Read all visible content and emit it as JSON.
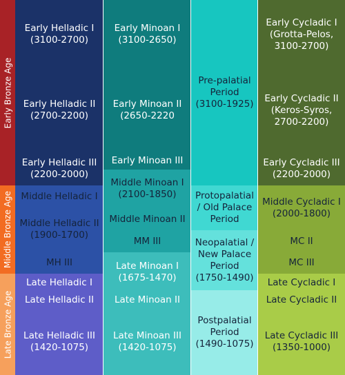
{
  "ages": [
    {
      "label": "Early Bronze Age",
      "color": "#a82226"
    },
    {
      "label": "Middle Bronze Age",
      "color": "#f26c22"
    },
    {
      "label": "Late Bronze Age",
      "color": "#f6a05c"
    }
  ],
  "columns": [
    {
      "name": "helladic",
      "cells": [
        {
          "label": "Early Helladic I\n(3100-2700)",
          "color": "#1b3268",
          "dark": false
        },
        {
          "label": "Early Helladic II\n(2700-2200)",
          "color": "#1b3268",
          "dark": false
        },
        {
          "label": "Early Helladic III\n(2200-2000)",
          "color": "#1b3268",
          "dark": false
        },
        {
          "label": "Middle Helladic I",
          "color": "#2c51a6",
          "dark": true
        },
        {
          "label": "Middle Helladic II\n(1900-1700)",
          "color": "#2c51a6",
          "dark": true
        },
        {
          "label": "MH III",
          "color": "#2c51a6",
          "dark": true
        },
        {
          "label": "Late Helladic I",
          "color": "#5e5dc8",
          "dark": false
        },
        {
          "label": "Late Helladic II",
          "color": "#5e5dc8",
          "dark": false
        },
        {
          "label": "Late Helladic III\n(1420-1075)",
          "color": "#5e5dc8",
          "dark": false
        }
      ]
    },
    {
      "name": "minoan",
      "cells": [
        {
          "label": "Early Minoan I\n(3100-2650)",
          "color": "#0f7c7d",
          "dark": false
        },
        {
          "label": "Early Minoan II\n(2650-2220",
          "color": "#0f7c7d",
          "dark": false
        },
        {
          "label": "Early Minoan III",
          "color": "#0f7c7d",
          "dark": false
        },
        {
          "label": "Middle Minoan I\n(2100-1850)",
          "color": "#1fa3a3",
          "dark": true
        },
        {
          "label": "Middle Minoan II",
          "color": "#1fa3a3",
          "dark": true
        },
        {
          "label": "MM III",
          "color": "#1fa3a3",
          "dark": true
        },
        {
          "label": "Late Minoan I\n(1675-1470)",
          "color": "#3dbdbb",
          "dark": false
        },
        {
          "label": "Late Minoan II",
          "color": "#3dbdbb",
          "dark": false
        },
        {
          "label": "Late Minoan III\n(1420-1075)",
          "color": "#3dbdbb",
          "dark": false
        }
      ]
    },
    {
      "name": "palatial",
      "cells": [
        {
          "label": "Pre-palatial\nPeriod\n(3100-1925)",
          "color": "#17c6c0",
          "dark": true
        },
        {
          "label": "Protopalatial\n/ Old Palace\nPeriod",
          "color": "#40d8d2",
          "dark": true
        },
        {
          "label": "Neopalatial /\nNew Palace\nPeriod\n(1750-1490)",
          "color": "#64e1dc",
          "dark": true
        },
        {
          "label": "Postpalatial\nPeriod\n(1490-1075)",
          "color": "#97ece8",
          "dark": true
        }
      ]
    },
    {
      "name": "cycladic",
      "cells": [
        {
          "label": "Early Cycladic I\n(Grotta-Pelos,\n3100-2700)",
          "color": "#4f6a2f",
          "dark": false
        },
        {
          "label": "Early Cycladic II\n(Keros-Syros,\n2700-2200)",
          "color": "#4f6a2f",
          "dark": false
        },
        {
          "label": "Early Cycladic III\n(2200-2000)",
          "color": "#4f6a2f",
          "dark": false
        },
        {
          "label": "Middle Cycladic I\n(2000-1800)",
          "color": "#88aa38",
          "dark": true
        },
        {
          "label": "MC II",
          "color": "#88aa38",
          "dark": true
        },
        {
          "label": "MC III",
          "color": "#88aa38",
          "dark": true
        },
        {
          "label": "Late Cycladic I",
          "color": "#a9cc48",
          "dark": true
        },
        {
          "label": "Late Cycladic II",
          "color": "#a9cc48",
          "dark": true
        },
        {
          "label": "Late Cycladic III\n(1350-1000)",
          "color": "#a9cc48",
          "dark": true
        }
      ]
    }
  ]
}
